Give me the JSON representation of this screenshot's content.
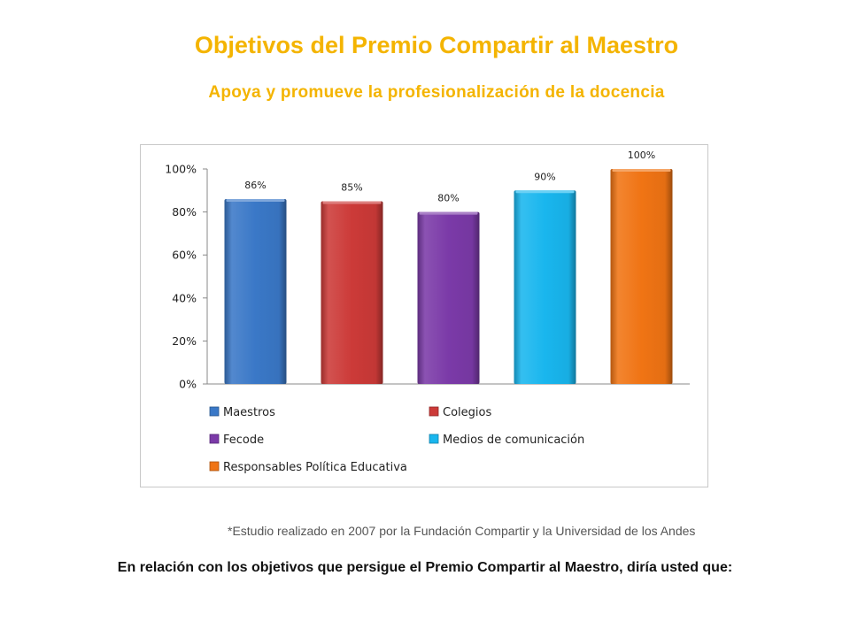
{
  "header": {
    "title": "Objetivos del Premio Compartir al Maestro",
    "subtitle": "Apoya y promueve la profesionalización de la docencia"
  },
  "chart_data": {
    "type": "bar",
    "categories": [
      "Maestros",
      "Colegios",
      "Fecode",
      "Medios de comunicación",
      "Responsables Política Educativa"
    ],
    "values": [
      86,
      85,
      80,
      90,
      100
    ],
    "data_labels": [
      "86%",
      "85%",
      "80%",
      "90%",
      "100%"
    ],
    "colors": [
      "#3a78c7",
      "#cc3a38",
      "#7b3aa8",
      "#19b6ee",
      "#f07414"
    ],
    "ylim": [
      0,
      100
    ],
    "yticks": [
      0,
      20,
      40,
      60,
      80,
      100
    ],
    "ytick_labels": [
      "0%",
      "20%",
      "40%",
      "60%",
      "80%",
      "100%"
    ],
    "grid": false,
    "legend_position": "bottom",
    "title": "",
    "xlabel": "",
    "ylabel": ""
  },
  "footnote": "*Estudio realizado en 2007 por la Fundación Compartir y la Universidad de los Andes",
  "question": "En relación con los objetivos que persigue el Premio Compartir al Maestro, diría usted que:"
}
